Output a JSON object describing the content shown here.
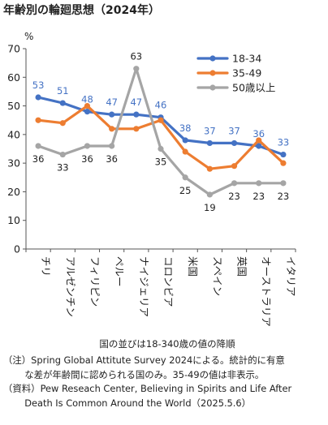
{
  "title": "年齢別の輪廻思想（2024年）",
  "chart_data": {
    "type": "line",
    "ylabel": "%",
    "ylim": [
      0,
      70
    ],
    "yticks": [
      0,
      10,
      20,
      30,
      40,
      50,
      60,
      70
    ],
    "grid": false,
    "legend": "top-right",
    "categories": [
      "チリ",
      "アルゼンチン",
      "フィリピン",
      "ペルー",
      "ナイジェリア",
      "コロンビア",
      "米国",
      "スペイン",
      "英国",
      "オーストラリア",
      "イタリア"
    ],
    "series": [
      {
        "name": "18-34",
        "color": "#4472C4",
        "values": [
          53,
          51,
          48,
          47,
          47,
          46,
          38,
          37,
          37,
          36,
          33
        ],
        "labels_shown": true
      },
      {
        "name": "35-49",
        "color": "#ED7D31",
        "values": [
          45,
          44,
          50,
          42,
          42,
          45,
          34,
          28,
          29,
          38,
          30
        ],
        "labels_shown": false
      },
      {
        "name": "50歳以上",
        "color": "#A5A5A5",
        "values": [
          36,
          33,
          36,
          36,
          63,
          35,
          25,
          19,
          23,
          23,
          23
        ],
        "labels_shown": true
      }
    ],
    "x_caption": "国の並びは18-340歳の値の降順"
  },
  "notes": [
    "（注）Spring Global Attitute Survey 2024による。統計的に有意",
    "な差が年齢間に認められる国のみ。35-49の値は非表示。",
    "（資料）Pew Reseach Center, Believing in Spirits and Life After",
    "Death Is Common Around the World（2025.5.6）"
  ]
}
